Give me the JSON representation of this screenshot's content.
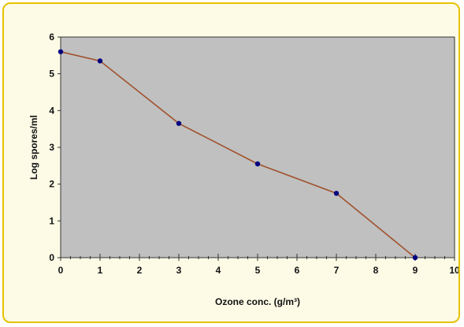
{
  "chart_data": {
    "type": "line",
    "title": "",
    "xlabel": "Ozone conc. (g/m³)",
    "ylabel": "Log spores/ml",
    "xlim": [
      0,
      10
    ],
    "ylim": [
      0,
      6
    ],
    "x_ticks": [
      "0",
      "1",
      "2",
      "3",
      "4",
      "5",
      "6",
      "7",
      "8",
      "9",
      "10"
    ],
    "y_ticks": [
      "0",
      "1",
      "2",
      "3",
      "4",
      "5",
      "6"
    ],
    "grid": false,
    "legend": "none",
    "plot_background": "#c0c0c0",
    "line_color": "#a0522d",
    "marker_color": "#000080",
    "series": [
      {
        "x": [
          0,
          1,
          3,
          5,
          7,
          9
        ],
        "y": [
          5.6,
          5.35,
          3.65,
          2.55,
          1.75,
          0.0
        ]
      }
    ]
  }
}
